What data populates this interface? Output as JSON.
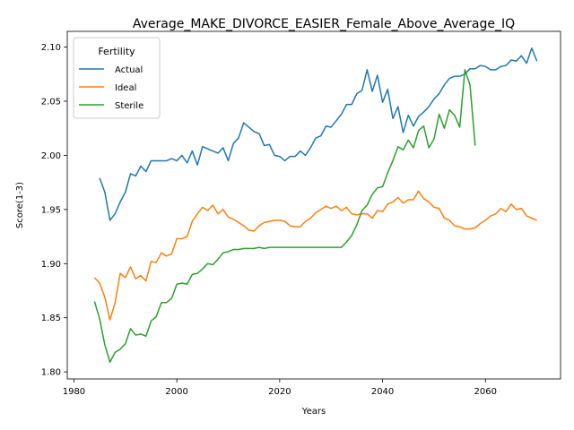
{
  "chart_data": {
    "type": "line",
    "title": "Average_MAKE_DIVORCE_EASIER_Female_Above_Average_IQ",
    "xlabel": "Years",
    "ylabel": "Score(1-3)",
    "xlim": [
      1978.7,
      2074.6
    ],
    "ylim": [
      1.7935,
      2.1145
    ],
    "x_ticks": [
      1980,
      2000,
      2020,
      2040,
      2060
    ],
    "x_tick_labels": [
      "1980",
      "2000",
      "2020",
      "2040",
      "2060"
    ],
    "y_ticks": [
      1.8,
      1.85,
      1.9,
      1.95,
      2.0,
      2.05,
      2.1
    ],
    "y_tick_labels": [
      "1.80",
      "1.85",
      "1.90",
      "1.95",
      "2.00",
      "2.05",
      "2.10"
    ],
    "grid": false,
    "legend": {
      "title": "Fertility",
      "placement": "top-left"
    },
    "series": [
      {
        "name": "Actual",
        "color": "#1f77b4",
        "points": [
          [
            1985,
            1.979
          ],
          [
            1986,
            1.966
          ],
          [
            1987,
            1.94
          ],
          [
            1988,
            1.946
          ],
          [
            1989,
            1.957
          ],
          [
            1990,
            1.966
          ],
          [
            1991,
            1.983
          ],
          [
            1992,
            1.981
          ],
          [
            1993,
            1.99
          ],
          [
            1994,
            1.985
          ],
          [
            1995,
            1.995
          ],
          [
            1996,
            1.995
          ],
          [
            1997,
            1.995
          ],
          [
            1998,
            1.995
          ],
          [
            1999,
            1.997
          ],
          [
            2000,
            1.995
          ],
          [
            2001,
            2.0
          ],
          [
            2002,
            1.993
          ],
          [
            2003,
            2.004
          ],
          [
            2004,
            1.991
          ],
          [
            2005,
            2.008
          ],
          [
            2006,
            2.006
          ],
          [
            2007,
            2.004
          ],
          [
            2008,
            2.002
          ],
          [
            2009,
            2.007
          ],
          [
            2010,
            1.995
          ],
          [
            2011,
            2.011
          ],
          [
            2012,
            2.016
          ],
          [
            2013,
            2.03
          ],
          [
            2014,
            2.026
          ],
          [
            2015,
            2.022
          ],
          [
            2016,
            2.02
          ],
          [
            2017,
            2.009
          ],
          [
            2018,
            2.01
          ],
          [
            2019,
            2.0
          ],
          [
            2020,
            1.999
          ],
          [
            2021,
            1.995
          ],
          [
            2022,
            1.999
          ],
          [
            2023,
            1.999
          ],
          [
            2024,
            2.004
          ],
          [
            2025,
            2.0
          ],
          [
            2026,
            2.007
          ],
          [
            2027,
            2.016
          ],
          [
            2028,
            2.018
          ],
          [
            2029,
            2.027
          ],
          [
            2030,
            2.026
          ],
          [
            2031,
            2.032
          ],
          [
            2032,
            2.038
          ],
          [
            2033,
            2.047
          ],
          [
            2034,
            2.047
          ],
          [
            2035,
            2.057
          ],
          [
            2036,
            2.06
          ],
          [
            2037,
            2.079
          ],
          [
            2038,
            2.059
          ],
          [
            2039,
            2.074
          ],
          [
            2040,
            2.049
          ],
          [
            2041,
            2.061
          ],
          [
            2042,
            2.034
          ],
          [
            2043,
            2.045
          ],
          [
            2044,
            2.021
          ],
          [
            2045,
            2.037
          ],
          [
            2046,
            2.027
          ],
          [
            2047,
            2.036
          ],
          [
            2048,
            2.04
          ],
          [
            2049,
            2.045
          ],
          [
            2050,
            2.052
          ],
          [
            2051,
            2.057
          ],
          [
            2052,
            2.065
          ],
          [
            2053,
            2.071
          ],
          [
            2054,
            2.073
          ],
          [
            2055,
            2.073
          ],
          [
            2056,
            2.075
          ],
          [
            2057,
            2.08
          ],
          [
            2058,
            2.08
          ],
          [
            2059,
            2.083
          ],
          [
            2060,
            2.082
          ],
          [
            2061,
            2.079
          ],
          [
            2062,
            2.079
          ],
          [
            2063,
            2.082
          ],
          [
            2064,
            2.083
          ],
          [
            2065,
            2.088
          ],
          [
            2066,
            2.087
          ],
          [
            2067,
            2.092
          ],
          [
            2068,
            2.085
          ],
          [
            2069,
            2.099
          ],
          [
            2070,
            2.087
          ]
        ]
      },
      {
        "name": "Ideal",
        "color": "#ff7f0e",
        "points": [
          [
            1984,
            1.887
          ],
          [
            1985,
            1.882
          ],
          [
            1986,
            1.869
          ],
          [
            1987,
            1.848
          ],
          [
            1988,
            1.864
          ],
          [
            1989,
            1.891
          ],
          [
            1990,
            1.887
          ],
          [
            1991,
            1.897
          ],
          [
            1992,
            1.886
          ],
          [
            1993,
            1.889
          ],
          [
            1994,
            1.884
          ],
          [
            1995,
            1.902
          ],
          [
            1996,
            1.901
          ],
          [
            1997,
            1.91
          ],
          [
            1998,
            1.907
          ],
          [
            1999,
            1.909
          ],
          [
            2000,
            1.923
          ],
          [
            2001,
            1.923
          ],
          [
            2002,
            1.925
          ],
          [
            2003,
            1.939
          ],
          [
            2004,
            1.946
          ],
          [
            2005,
            1.952
          ],
          [
            2006,
            1.949
          ],
          [
            2007,
            1.954
          ],
          [
            2008,
            1.946
          ],
          [
            2009,
            1.95
          ],
          [
            2010,
            1.943
          ],
          [
            2011,
            1.941
          ],
          [
            2012,
            1.938
          ],
          [
            2013,
            1.935
          ],
          [
            2014,
            1.931
          ],
          [
            2015,
            1.93
          ],
          [
            2016,
            1.935
          ],
          [
            2017,
            1.938
          ],
          [
            2018,
            1.939
          ],
          [
            2019,
            1.94
          ],
          [
            2020,
            1.94
          ],
          [
            2021,
            1.939
          ],
          [
            2022,
            1.935
          ],
          [
            2023,
            1.934
          ],
          [
            2024,
            1.934
          ],
          [
            2025,
            1.939
          ],
          [
            2026,
            1.942
          ],
          [
            2027,
            1.947
          ],
          [
            2028,
            1.95
          ],
          [
            2029,
            1.953
          ],
          [
            2030,
            1.951
          ],
          [
            2031,
            1.953
          ],
          [
            2032,
            1.949
          ],
          [
            2033,
            1.952
          ],
          [
            2034,
            1.946
          ],
          [
            2035,
            1.945
          ],
          [
            2036,
            1.946
          ],
          [
            2037,
            1.946
          ],
          [
            2038,
            1.942
          ],
          [
            2039,
            1.949
          ],
          [
            2040,
            1.948
          ],
          [
            2041,
            1.955
          ],
          [
            2042,
            1.957
          ],
          [
            2043,
            1.961
          ],
          [
            2044,
            1.956
          ],
          [
            2045,
            1.959
          ],
          [
            2046,
            1.959
          ],
          [
            2047,
            1.967
          ],
          [
            2048,
            1.96
          ],
          [
            2049,
            1.957
          ],
          [
            2050,
            1.952
          ],
          [
            2051,
            1.951
          ],
          [
            2052,
            1.942
          ],
          [
            2053,
            1.94
          ],
          [
            2054,
            1.935
          ],
          [
            2055,
            1.934
          ],
          [
            2056,
            1.932
          ],
          [
            2057,
            1.932
          ],
          [
            2058,
            1.933
          ],
          [
            2059,
            1.937
          ],
          [
            2060,
            1.94
          ],
          [
            2061,
            1.944
          ],
          [
            2062,
            1.946
          ],
          [
            2063,
            1.951
          ],
          [
            2064,
            1.948
          ],
          [
            2065,
            1.955
          ],
          [
            2066,
            1.95
          ],
          [
            2067,
            1.951
          ],
          [
            2068,
            1.944
          ],
          [
            2069,
            1.942
          ],
          [
            2070,
            1.94
          ]
        ]
      },
      {
        "name": "Sterile",
        "color": "#2ca02c",
        "points": [
          [
            1984,
            1.865
          ],
          [
            1985,
            1.849
          ],
          [
            1986,
            1.825
          ],
          [
            1987,
            1.809
          ],
          [
            1988,
            1.818
          ],
          [
            1989,
            1.821
          ],
          [
            1990,
            1.826
          ],
          [
            1991,
            1.84
          ],
          [
            1992,
            1.834
          ],
          [
            1993,
            1.835
          ],
          [
            1994,
            1.833
          ],
          [
            1995,
            1.847
          ],
          [
            1996,
            1.851
          ],
          [
            1997,
            1.864
          ],
          [
            1998,
            1.864
          ],
          [
            1999,
            1.868
          ],
          [
            2000,
            1.881
          ],
          [
            2001,
            1.882
          ],
          [
            2002,
            1.881
          ],
          [
            2003,
            1.89
          ],
          [
            2004,
            1.891
          ],
          [
            2005,
            1.895
          ],
          [
            2006,
            1.9
          ],
          [
            2007,
            1.899
          ],
          [
            2008,
            1.904
          ],
          [
            2009,
            1.91
          ],
          [
            2010,
            1.911
          ],
          [
            2011,
            1.913
          ],
          [
            2012,
            1.913
          ],
          [
            2013,
            1.914
          ],
          [
            2014,
            1.914
          ],
          [
            2015,
            1.914
          ],
          [
            2016,
            1.915
          ],
          [
            2017,
            1.914
          ],
          [
            2018,
            1.915
          ],
          [
            2019,
            1.915
          ],
          [
            2020,
            1.915
          ],
          [
            2021,
            1.915
          ],
          [
            2022,
            1.915
          ],
          [
            2023,
            1.915
          ],
          [
            2024,
            1.915
          ],
          [
            2025,
            1.915
          ],
          [
            2026,
            1.915
          ],
          [
            2027,
            1.915
          ],
          [
            2028,
            1.915
          ],
          [
            2029,
            1.915
          ],
          [
            2030,
            1.915
          ],
          [
            2031,
            1.915
          ],
          [
            2032,
            1.915
          ],
          [
            2033,
            1.92
          ],
          [
            2034,
            1.926
          ],
          [
            2035,
            1.936
          ],
          [
            2036,
            1.949
          ],
          [
            2037,
            1.954
          ],
          [
            2038,
            1.964
          ],
          [
            2039,
            1.97
          ],
          [
            2040,
            1.971
          ],
          [
            2041,
            1.984
          ],
          [
            2042,
            1.995
          ],
          [
            2043,
            2.008
          ],
          [
            2044,
            2.005
          ],
          [
            2045,
            2.014
          ],
          [
            2046,
            2.007
          ],
          [
            2047,
            2.023
          ],
          [
            2048,
            2.027
          ],
          [
            2049,
            2.007
          ],
          [
            2050,
            2.015
          ],
          [
            2051,
            2.038
          ],
          [
            2052,
            2.025
          ],
          [
            2053,
            2.042
          ],
          [
            2054,
            2.037
          ],
          [
            2055,
            2.026
          ],
          [
            2056,
            2.079
          ],
          [
            2057,
            2.065
          ],
          [
            2058,
            2.009
          ]
        ]
      }
    ]
  }
}
